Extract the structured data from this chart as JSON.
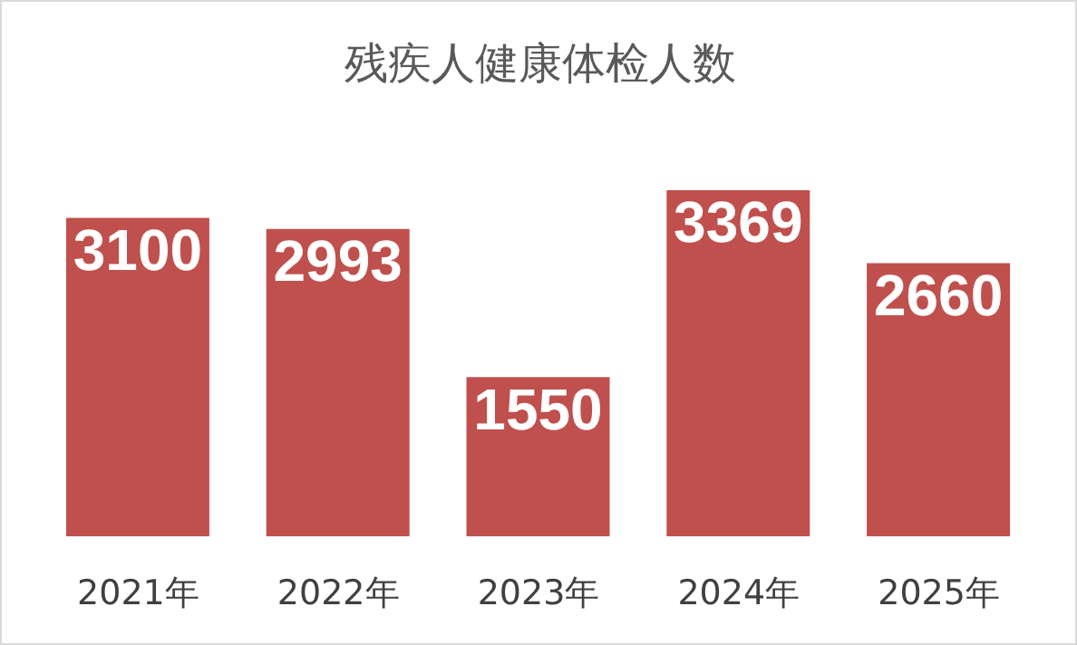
{
  "chart_data": {
    "type": "bar",
    "title": "残疾人健康体检人数",
    "categories": [
      "2021年",
      "2022年",
      "2023年",
      "2024年",
      "2025年"
    ],
    "values": [
      3100,
      2993,
      1550,
      3369,
      2660
    ],
    "color": "#c0504d",
    "data_labels": true
  }
}
